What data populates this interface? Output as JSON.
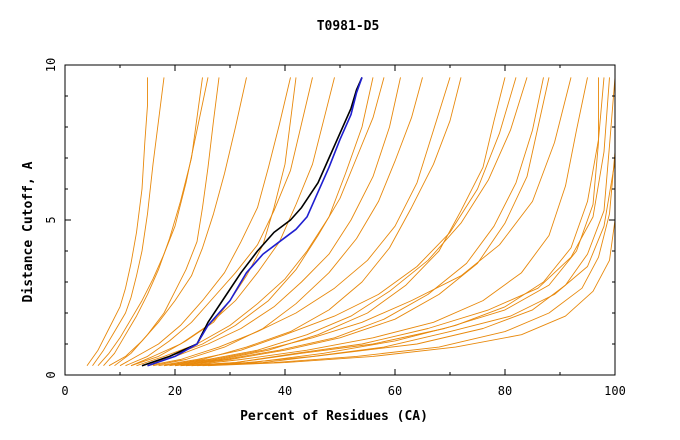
{
  "chart_data": {
    "type": "line",
    "title": "T0981-D5",
    "xlabel": "Percent of Residues (CA)",
    "ylabel": "Distance Cutoff, A",
    "xlim": [
      0,
      100
    ],
    "ylim": [
      0,
      10
    ],
    "x_ticks": [
      "0",
      "20",
      "40",
      "60",
      "80",
      "100"
    ],
    "y_ticks": [
      "0",
      "5",
      "10"
    ],
    "grid": false,
    "legend": "none",
    "colors": {
      "models": "#e8890c",
      "highlight_1": "#000000",
      "highlight_2": "#1f1fd0",
      "axis": "#000000"
    },
    "series": [
      {
        "role": "model",
        "x": [
          4,
          6,
          8,
          10,
          11,
          12,
          13,
          14,
          14.5,
          15,
          15
        ],
        "y": [
          0.3,
          0.8,
          1.5,
          2.2,
          2.8,
          3.6,
          4.6,
          6.0,
          7.5,
          8.7,
          9.6
        ]
      },
      {
        "role": "model",
        "x": [
          5,
          7,
          9,
          11,
          12,
          13,
          14,
          15,
          16,
          17,
          18
        ],
        "y": [
          0.3,
          0.8,
          1.4,
          2.0,
          2.5,
          3.2,
          4.0,
          5.2,
          6.8,
          8.2,
          9.6
        ]
      },
      {
        "role": "model",
        "x": [
          6,
          8,
          10,
          12,
          14,
          16,
          18,
          20,
          22,
          24,
          26
        ],
        "y": [
          0.3,
          0.7,
          1.2,
          1.8,
          2.4,
          3.1,
          3.9,
          4.8,
          6.2,
          7.9,
          9.6
        ]
      },
      {
        "role": "model",
        "x": [
          8,
          11,
          14,
          17,
          20,
          23,
          25,
          27,
          29,
          31,
          33
        ],
        "y": [
          0.3,
          0.6,
          1.1,
          1.7,
          2.4,
          3.2,
          4.1,
          5.2,
          6.5,
          8.0,
          9.6
        ]
      },
      {
        "role": "model",
        "x": [
          10,
          13,
          17,
          21,
          25,
          29,
          32,
          35,
          37,
          39,
          41
        ],
        "y": [
          0.3,
          0.6,
          1.0,
          1.6,
          2.4,
          3.3,
          4.3,
          5.4,
          6.7,
          8.1,
          9.6
        ]
      },
      {
        "role": "model",
        "x": [
          12,
          16,
          21,
          26,
          31,
          35,
          39,
          42,
          45,
          47,
          49
        ],
        "y": [
          0.3,
          0.6,
          1.0,
          1.6,
          2.4,
          3.3,
          4.3,
          5.5,
          6.8,
          8.2,
          9.6
        ]
      },
      {
        "role": "model",
        "x": [
          14,
          19,
          25,
          31,
          37,
          42,
          46,
          50,
          53,
          56,
          58
        ],
        "y": [
          0.3,
          0.6,
          1.0,
          1.6,
          2.4,
          3.4,
          4.5,
          5.7,
          7.0,
          8.3,
          9.6
        ]
      },
      {
        "role": "model",
        "x": [
          16,
          22,
          29,
          36,
          42,
          48,
          53,
          57,
          60,
          63,
          65
        ],
        "y": [
          0.3,
          0.5,
          0.9,
          1.5,
          2.3,
          3.3,
          4.4,
          5.6,
          6.9,
          8.3,
          9.6
        ]
      },
      {
        "role": "model",
        "x": [
          18,
          25,
          33,
          41,
          48,
          54,
          59,
          63,
          67,
          70,
          72
        ],
        "y": [
          0.3,
          0.5,
          0.9,
          1.4,
          2.1,
          3.0,
          4.1,
          5.4,
          6.8,
          8.2,
          9.6
        ]
      },
      {
        "role": "model",
        "x": [
          20,
          28,
          37,
          46,
          55,
          62,
          68,
          72,
          76,
          78,
          80
        ],
        "y": [
          0.3,
          0.5,
          0.8,
          1.3,
          2.0,
          2.9,
          4.0,
          5.3,
          6.7,
          8.2,
          9.6
        ]
      },
      {
        "role": "model",
        "x": [
          21,
          30,
          40,
          50,
          60,
          68,
          75,
          80,
          84,
          86,
          88
        ],
        "y": [
          0.3,
          0.5,
          0.8,
          1.2,
          1.8,
          2.6,
          3.6,
          4.9,
          6.4,
          8.0,
          9.6
        ]
      },
      {
        "role": "model",
        "x": [
          22,
          32,
          44,
          56,
          67,
          76,
          83,
          88,
          91,
          93,
          95
        ],
        "y": [
          0.3,
          0.5,
          0.8,
          1.2,
          1.7,
          2.4,
          3.3,
          4.5,
          6.1,
          7.9,
          9.6
        ]
      },
      {
        "role": "model",
        "x": [
          23,
          34,
          47,
          60,
          71,
          80,
          87,
          92,
          95,
          97,
          98
        ],
        "y": [
          0.3,
          0.4,
          0.7,
          1.1,
          1.6,
          2.2,
          3.0,
          4.1,
          5.6,
          7.6,
          9.6
        ]
      },
      {
        "role": "model",
        "x": [
          24,
          36,
          50,
          64,
          76,
          85,
          91,
          95,
          98,
          99,
          100
        ],
        "y": [
          0.3,
          0.4,
          0.7,
          1.0,
          1.5,
          2.1,
          2.9,
          3.9,
          5.3,
          7.4,
          9.6
        ]
      },
      {
        "role": "model",
        "x": [
          25,
          38,
          53,
          68,
          80,
          88,
          94,
          97,
          99,
          100,
          100
        ],
        "y": [
          0.3,
          0.4,
          0.6,
          0.9,
          1.4,
          2.0,
          2.8,
          3.8,
          5.2,
          7.2,
          9.6
        ]
      },
      {
        "role": "model",
        "x": [
          26,
          40,
          56,
          71,
          83,
          91,
          96,
          99,
          100,
          100,
          100
        ],
        "y": [
          0.3,
          0.4,
          0.6,
          0.9,
          1.3,
          1.9,
          2.7,
          3.7,
          5.0,
          7.0,
          9.6
        ]
      },
      {
        "role": "model",
        "x": [
          9,
          12,
          15,
          18,
          20,
          22,
          24,
          25,
          26,
          27,
          28
        ],
        "y": [
          0.3,
          0.7,
          1.3,
          2.0,
          2.7,
          3.4,
          4.3,
          5.4,
          6.7,
          8.2,
          9.6
        ]
      },
      {
        "role": "model",
        "x": [
          11,
          15,
          19,
          23,
          27,
          31,
          35,
          38,
          41,
          43,
          45
        ],
        "y": [
          0.3,
          0.6,
          1.1,
          1.7,
          2.5,
          3.3,
          4.2,
          5.3,
          6.6,
          8.1,
          9.6
        ]
      },
      {
        "role": "model",
        "x": [
          13,
          18,
          24,
          30,
          35,
          40,
          44,
          48,
          51,
          54,
          56
        ],
        "y": [
          0.3,
          0.6,
          1.0,
          1.6,
          2.3,
          3.1,
          4.0,
          5.1,
          6.5,
          8.0,
          9.6
        ]
      },
      {
        "role": "model",
        "x": [
          15,
          21,
          28,
          35,
          42,
          49,
          55,
          60,
          64,
          67,
          70
        ],
        "y": [
          0.3,
          0.5,
          0.9,
          1.4,
          2.0,
          2.8,
          3.7,
          4.8,
          6.2,
          7.9,
          9.6
        ]
      },
      {
        "role": "model",
        "x": [
          17,
          24,
          32,
          40,
          49,
          57,
          64,
          70,
          75,
          79,
          82
        ],
        "y": [
          0.3,
          0.5,
          0.8,
          1.3,
          1.9,
          2.6,
          3.5,
          4.6,
          6.0,
          7.8,
          9.6
        ]
      },
      {
        "role": "model",
        "x": [
          19,
          27,
          36,
          45,
          54,
          63,
          72,
          79,
          85,
          89,
          92
        ],
        "y": [
          0.3,
          0.5,
          0.8,
          1.2,
          1.7,
          2.4,
          3.2,
          4.2,
          5.6,
          7.5,
          9.6
        ]
      },
      {
        "role": "model",
        "x": [
          22,
          31,
          42,
          54,
          66,
          77,
          86,
          92,
          96,
          98,
          99
        ],
        "y": [
          0.3,
          0.4,
          0.7,
          1.0,
          1.5,
          2.1,
          2.8,
          3.8,
          5.1,
          7.2,
          9.6
        ]
      },
      {
        "role": "model",
        "x": [
          23,
          33,
          45,
          58,
          70,
          81,
          89,
          95,
          98,
          100,
          100
        ],
        "y": [
          0.3,
          0.4,
          0.6,
          0.9,
          1.4,
          1.9,
          2.6,
          3.5,
          4.8,
          6.9,
          9.6
        ]
      },
      {
        "role": "model",
        "x": [
          12,
          17,
          22,
          27,
          30,
          33,
          36,
          38,
          40,
          41,
          42
        ],
        "y": [
          0.3,
          0.6,
          1.1,
          1.7,
          2.4,
          3.2,
          4.2,
          5.4,
          6.8,
          8.2,
          9.6
        ]
      },
      {
        "role": "model",
        "x": [
          14,
          20,
          26,
          32,
          38,
          43,
          48,
          52,
          56,
          59,
          61
        ],
        "y": [
          0.3,
          0.6,
          1.0,
          1.5,
          2.2,
          3.0,
          3.9,
          5.0,
          6.4,
          8.0,
          9.6
        ]
      },
      {
        "role": "model",
        "x": [
          7,
          9,
          11,
          13,
          15,
          17,
          19,
          21,
          23,
          24,
          25
        ],
        "y": [
          0.3,
          0.7,
          1.3,
          1.9,
          2.6,
          3.4,
          4.4,
          5.6,
          7.0,
          8.3,
          9.6
        ]
      },
      {
        "role": "model",
        "x": [
          18,
          26,
          35,
          44,
          52,
          59,
          66,
          72,
          77,
          81,
          84
        ],
        "y": [
          0.3,
          0.5,
          0.8,
          1.3,
          1.9,
          2.7,
          3.7,
          4.9,
          6.3,
          7.9,
          9.6
        ]
      },
      {
        "role": "model",
        "x": [
          20,
          29,
          39,
          49,
          58,
          66,
          73,
          78,
          82,
          85,
          87
        ],
        "y": [
          0.3,
          0.5,
          0.8,
          1.2,
          1.8,
          2.6,
          3.6,
          4.8,
          6.2,
          7.9,
          9.6
        ]
      },
      {
        "role": "model",
        "x": [
          21,
          31,
          43,
          56,
          69,
          80,
          88,
          93,
          96,
          97,
          97
        ],
        "y": [
          0.3,
          0.4,
          0.7,
          1.0,
          1.5,
          2.1,
          2.9,
          4.0,
          5.5,
          7.5,
          9.6
        ]
      },
      {
        "role": "highlight",
        "color": "#000000",
        "x": [
          14,
          19,
          24,
          26,
          29,
          32,
          35,
          38,
          41,
          43,
          46,
          48,
          50,
          52,
          53,
          54
        ],
        "y": [
          0.3,
          0.6,
          1.0,
          1.7,
          2.5,
          3.3,
          4.0,
          4.6,
          5.0,
          5.4,
          6.2,
          7.0,
          7.8,
          8.6,
          9.2,
          9.6
        ]
      },
      {
        "role": "highlight",
        "color": "#1f1fd0",
        "x": [
          15,
          20,
          24,
          26,
          30,
          33,
          36,
          39,
          42,
          44,
          46,
          48,
          50,
          52,
          53,
          54
        ],
        "y": [
          0.3,
          0.6,
          1.0,
          1.6,
          2.4,
          3.3,
          3.9,
          4.3,
          4.7,
          5.1,
          5.9,
          6.7,
          7.6,
          8.4,
          9.1,
          9.6
        ]
      }
    ]
  }
}
